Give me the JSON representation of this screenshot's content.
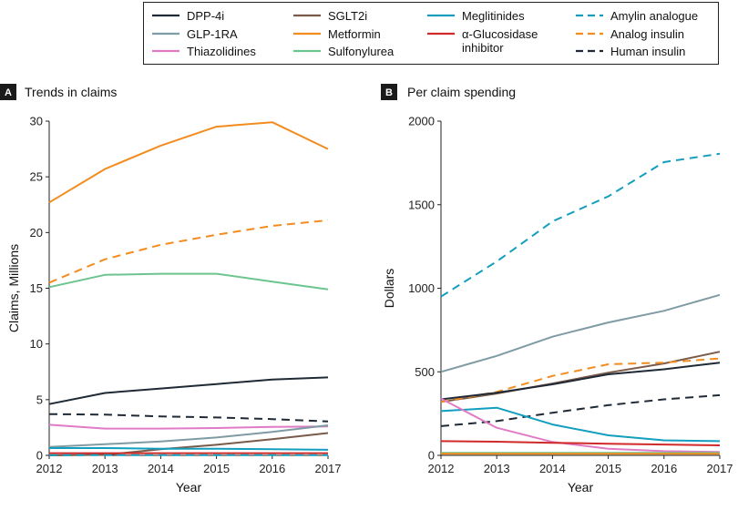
{
  "legend": [
    {
      "name": "DPP-4i",
      "color": "#1f2a36",
      "dash": false,
      "lines": [
        "DPP-4i"
      ]
    },
    {
      "name": "GLP-1RA",
      "color": "#7f9ba3",
      "dash": false,
      "lines": [
        "GLP-1RA"
      ]
    },
    {
      "name": "Thiazolidines",
      "color": "#e07bc6",
      "dash": false,
      "lines": [
        "Thiazolidines"
      ]
    },
    {
      "name": "SGLT2i",
      "color": "#7a5b4a",
      "dash": false,
      "lines": [
        "SGLT2i"
      ]
    },
    {
      "name": "Metformin",
      "color": "#f28c1e",
      "dash": false,
      "lines": [
        "Metformin"
      ]
    },
    {
      "name": "Sulfonylurea",
      "color": "#6cc48e",
      "dash": false,
      "lines": [
        "Sulfonylurea"
      ]
    },
    {
      "name": "Meglitinides",
      "color": "#139ebf",
      "dash": false,
      "lines": [
        "Meglitinides"
      ]
    },
    {
      "name": "α-Glucosidase inhibitor",
      "color": "#d12a2a",
      "dash": false,
      "lines": [
        "α-Glucosidase",
        "inhibitor"
      ]
    },
    {
      "name": "Amylin analogue",
      "color": "#139ebf",
      "dash": true,
      "lines": [
        "Amylin analogue"
      ]
    },
    {
      "name": "Analog insulin",
      "color": "#f28c1e",
      "dash": true,
      "lines": [
        "Analog insulin"
      ]
    },
    {
      "name": "Human insulin",
      "color": "#1f2a36",
      "dash": true,
      "lines": [
        "Human insulin"
      ]
    }
  ],
  "chart_data": [
    {
      "type": "line",
      "panel_letter": "A",
      "title": "Trends in claims",
      "xlabel": "Year",
      "ylabel": "Claims, Millions",
      "x": [
        2012,
        2013,
        2014,
        2015,
        2016,
        2017
      ],
      "xticks": [
        "2012",
        "2013",
        "2014",
        "2015",
        "2016",
        "2017"
      ],
      "ylim": [
        0,
        30
      ],
      "yticks": [
        0,
        5,
        10,
        15,
        20,
        25,
        30
      ],
      "series": [
        {
          "name": "Metformin",
          "values": [
            22.7,
            25.7,
            27.8,
            29.5,
            29.9,
            27.5
          ]
        },
        {
          "name": "Analog insulin",
          "values": [
            15.5,
            17.6,
            18.9,
            19.8,
            20.6,
            21.1
          ]
        },
        {
          "name": "Sulfonylurea",
          "values": [
            15.1,
            16.2,
            16.3,
            16.3,
            15.6,
            14.9
          ]
        },
        {
          "name": "DPP-4i",
          "values": [
            4.6,
            5.6,
            6.0,
            6.4,
            6.8,
            7.0
          ]
        },
        {
          "name": "Human insulin",
          "values": [
            3.7,
            3.65,
            3.5,
            3.4,
            3.25,
            3.05
          ]
        },
        {
          "name": "Thiazolidines",
          "values": [
            2.75,
            2.4,
            2.4,
            2.45,
            2.55,
            2.6
          ]
        },
        {
          "name": "GLP-1RA",
          "values": [
            0.75,
            1.0,
            1.25,
            1.6,
            2.1,
            2.7
          ]
        },
        {
          "name": "SGLT2i",
          "values": [
            0.0,
            0.05,
            0.55,
            0.95,
            1.45,
            2.0
          ]
        },
        {
          "name": "Meglitinides",
          "values": [
            0.65,
            0.65,
            0.6,
            0.6,
            0.55,
            0.5
          ]
        },
        {
          "name": "α-Glucosidase inhibitor",
          "values": [
            0.2,
            0.2,
            0.2,
            0.2,
            0.2,
            0.2
          ]
        },
        {
          "name": "Amylin analogue",
          "values": [
            0.02,
            0.02,
            0.02,
            0.02,
            0.02,
            0.02
          ]
        }
      ]
    },
    {
      "type": "line",
      "panel_letter": "B",
      "title": "Per claim spending",
      "xlabel": "Year",
      "ylabel": "Dollars",
      "x": [
        2012,
        2013,
        2014,
        2015,
        2016,
        2017
      ],
      "xticks": [
        "2012",
        "2013",
        "2014",
        "2015",
        "2016",
        "2017"
      ],
      "ylim": [
        0,
        2000
      ],
      "yticks": [
        0,
        500,
        1000,
        1500,
        2000
      ],
      "series": [
        {
          "name": "Amylin analogue",
          "values": [
            950,
            1160,
            1400,
            1550,
            1755,
            1805
          ]
        },
        {
          "name": "GLP-1RA",
          "values": [
            500,
            595,
            710,
            795,
            865,
            960
          ]
        },
        {
          "name": "SGLT2i",
          "values": [
            320,
            370,
            430,
            495,
            550,
            620
          ]
        },
        {
          "name": "Analog insulin",
          "values": [
            320,
            380,
            475,
            545,
            555,
            580
          ]
        },
        {
          "name": "DPP-4i",
          "values": [
            335,
            375,
            425,
            485,
            515,
            555
          ]
        },
        {
          "name": "Human insulin",
          "values": [
            175,
            205,
            255,
            300,
            335,
            360
          ]
        },
        {
          "name": "Meglitinides",
          "values": [
            265,
            285,
            185,
            120,
            90,
            85
          ]
        },
        {
          "name": "Thiazolidines",
          "values": [
            340,
            165,
            80,
            40,
            25,
            20
          ]
        },
        {
          "name": "α-Glucosidase inhibitor",
          "values": [
            85,
            82,
            75,
            70,
            65,
            60
          ]
        },
        {
          "name": "Sulfonylurea",
          "values": [
            15,
            15,
            15,
            15,
            15,
            15
          ]
        },
        {
          "name": "Metformin",
          "values": [
            10,
            10,
            10,
            10,
            10,
            10
          ]
        }
      ]
    }
  ]
}
